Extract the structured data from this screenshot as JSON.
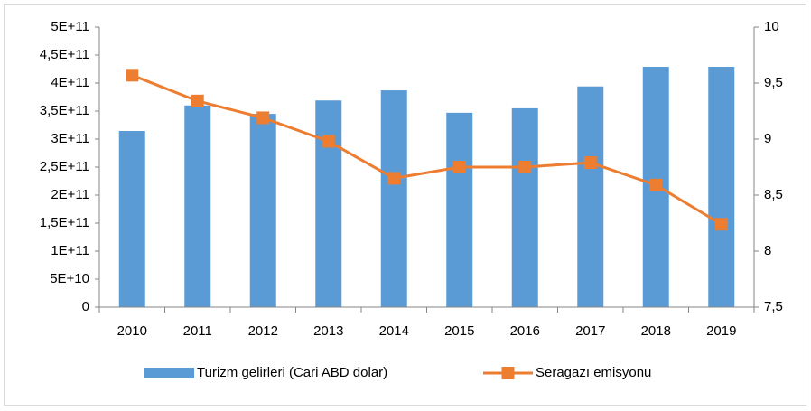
{
  "chart_data": {
    "type": "bar_line",
    "categories": [
      "2010",
      "2011",
      "2012",
      "2013",
      "2014",
      "2015",
      "2016",
      "2017",
      "2018",
      "2019"
    ],
    "series": [
      {
        "name": "Turizm gelirleri (Cari ABD dolar)",
        "type": "bar",
        "color": "#5b9bd5",
        "values": [
          314500000000,
          360000000000,
          345000000000,
          369000000000,
          387000000000,
          347000000000,
          355000000000,
          394000000000,
          429000000000,
          429000000000
        ]
      },
      {
        "name": "Seragazı emisyonu",
        "type": "line",
        "color": "#ed7d31",
        "axis": "y2",
        "values": [
          9.57,
          9.34,
          9.19,
          8.98,
          8.65,
          8.75,
          8.75,
          8.79,
          8.59,
          8.24
        ]
      }
    ],
    "ylim": [
      0,
      500000000000
    ],
    "yticks": [
      0,
      {
        "value": 50000000000,
        "label": "5E+10"
      },
      {
        "value": 100000000000,
        "label": "1E+11"
      },
      {
        "value": 150000000000,
        "label": "1,5E+11"
      },
      {
        "value": 200000000000,
        "label": "2E+11"
      },
      {
        "value": 250000000000,
        "label": "2,5E+11"
      },
      {
        "value": 300000000000,
        "label": "3E+11"
      },
      {
        "value": 350000000000,
        "label": "3,5E+11"
      },
      {
        "value": 400000000000,
        "label": "4E+11"
      },
      {
        "value": 450000000000,
        "label": "4,5E+11"
      },
      {
        "value": 500000000000,
        "label": "5E+11"
      }
    ],
    "y2lim": [
      7.5,
      10
    ],
    "y2ticks": [
      {
        "value": 7.5,
        "label": "7,5"
      },
      8,
      {
        "value": 8.5,
        "label": "8,5"
      },
      9,
      {
        "value": 9.5,
        "label": "9,5"
      },
      10
    ],
    "legend": "bottom",
    "grid": false
  }
}
